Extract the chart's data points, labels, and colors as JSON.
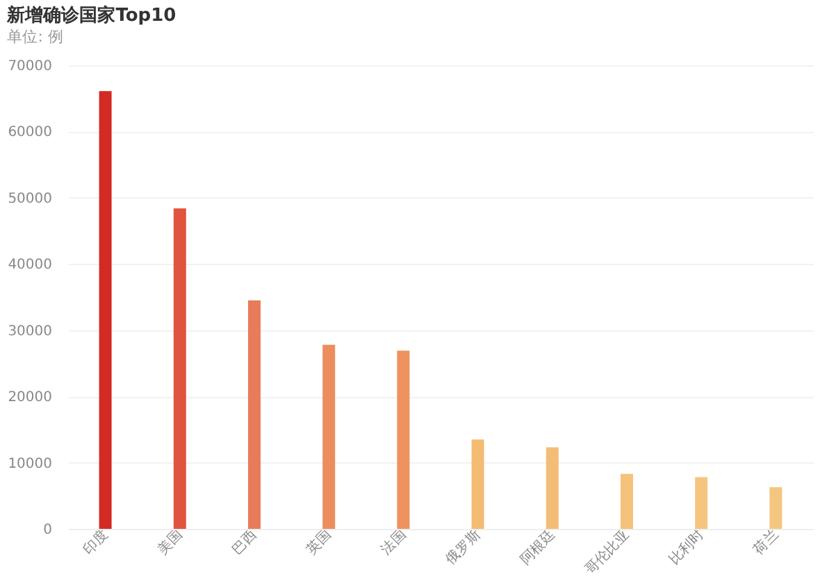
{
  "chart_data": {
    "type": "bar",
    "title": "新增确诊国家Top10",
    "subtitle": "单位: 例",
    "categories": [
      "印度",
      "美国",
      "巴西",
      "英国",
      "法国",
      "俄罗斯",
      "阿根廷",
      "哥伦比亚",
      "比利时",
      "荷兰"
    ],
    "values": [
      66100,
      48400,
      34500,
      27800,
      26900,
      13500,
      12300,
      8300,
      7800,
      6300
    ],
    "colors": [
      "#d42a25",
      "#e0533f",
      "#e87c5a",
      "#ec8d5e",
      "#ee925f",
      "#f4bb73",
      "#f4bd76",
      "#f5c27c",
      "#f5c47e",
      "#f5c67f"
    ],
    "ylim": [
      0,
      70000
    ],
    "yticks": [
      0,
      10000,
      20000,
      30000,
      40000,
      50000,
      60000,
      70000
    ],
    "grid": "y",
    "legend": false
  }
}
